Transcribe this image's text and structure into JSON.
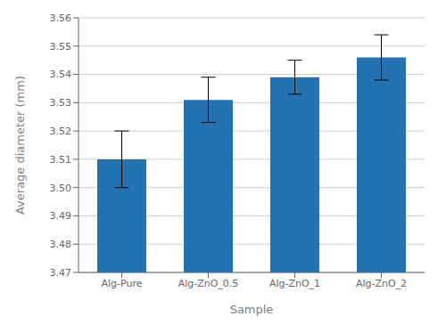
{
  "chart_data": {
    "type": "bar",
    "categories": [
      "Alg-Pure",
      "Alg-ZnO_0.5",
      "Alg-ZnO_1",
      "Alg-ZnO_2"
    ],
    "values": [
      3.51,
      3.531,
      3.539,
      3.546
    ],
    "errors": [
      0.01,
      0.008,
      0.006,
      0.008
    ],
    "color": "#2472B2",
    "xlabel": "Sample",
    "ylabel": "Average diameter (mm)",
    "ylim": [
      3.47,
      3.56
    ],
    "yticks": [
      3.47,
      3.48,
      3.49,
      {
        "value": 3.5,
        "label": "3.50"
      },
      3.51,
      3.52,
      3.53,
      3.54,
      3.55,
      3.56
    ],
    "grid": true
  }
}
